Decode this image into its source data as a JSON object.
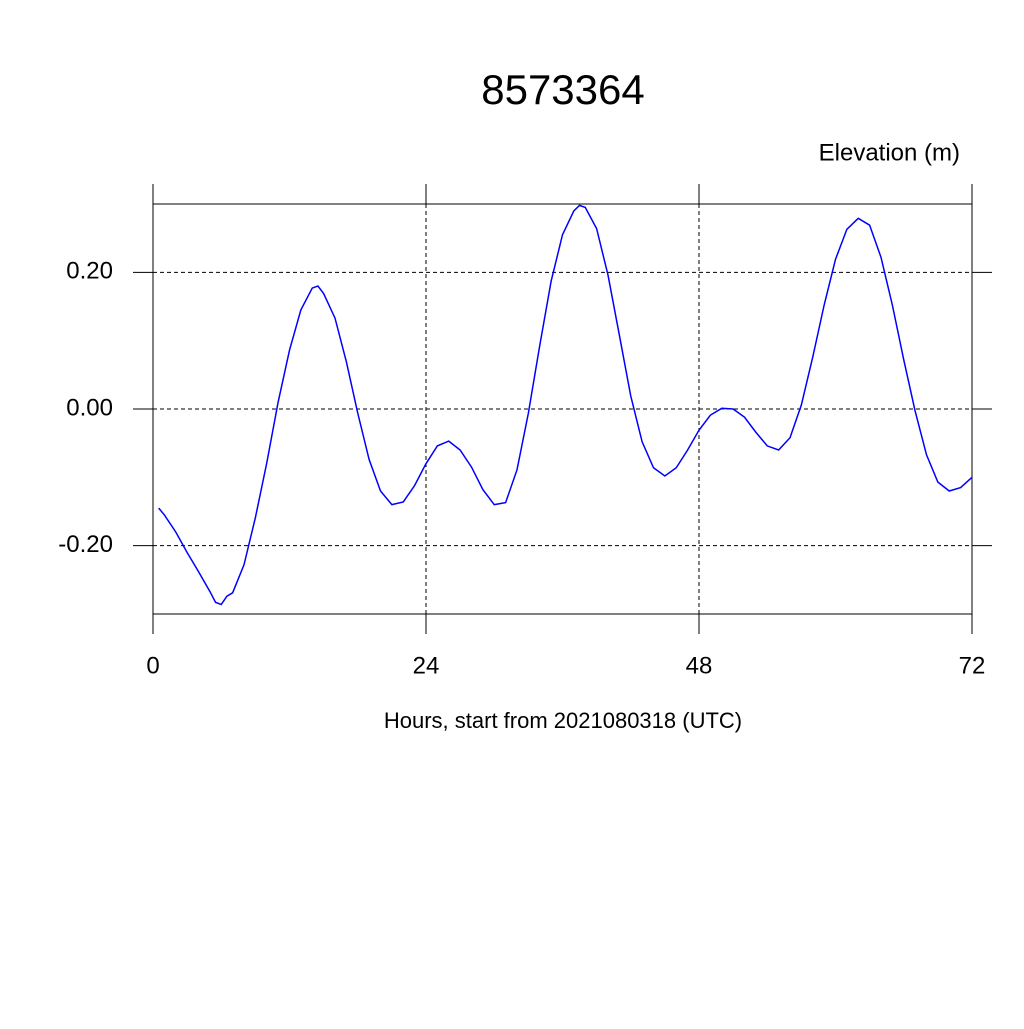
{
  "chart_data": {
    "type": "line",
    "title": "8573364",
    "ylabel": "Elevation (m)",
    "xlabel": "Hours, start from 2021080318 (UTC)",
    "x": [
      0.5,
      1,
      2,
      3,
      4,
      5,
      5.5,
      6,
      6.5,
      7,
      8,
      9,
      10,
      11,
      12,
      13,
      14,
      14.5,
      15,
      16,
      17,
      18,
      19,
      20,
      21,
      22,
      23,
      24,
      25,
      26,
      27,
      28,
      29,
      30,
      31,
      32,
      33,
      34,
      35,
      36,
      37,
      37.5,
      38,
      39,
      40,
      41,
      42,
      43,
      44,
      45,
      46,
      47,
      48,
      49,
      50,
      51,
      52,
      53,
      54,
      55,
      56,
      57,
      58,
      59,
      60,
      61,
      62,
      63,
      64,
      65,
      66,
      67,
      68,
      69,
      70,
      71,
      72
    ],
    "series": [
      {
        "name": "Elevation",
        "color": "#0000ff",
        "values": [
          -0.145,
          -0.155,
          -0.18,
          -0.21,
          -0.238,
          -0.267,
          -0.283,
          -0.286,
          -0.274,
          -0.269,
          -0.228,
          -0.159,
          -0.079,
          0.01,
          0.086,
          0.145,
          0.177,
          0.18,
          0.169,
          0.133,
          0.069,
          -0.006,
          -0.074,
          -0.12,
          -0.14,
          -0.136,
          -0.112,
          -0.08,
          -0.054,
          -0.047,
          -0.06,
          -0.085,
          -0.118,
          -0.14,
          -0.137,
          -0.089,
          -0.006,
          0.093,
          0.187,
          0.255,
          0.29,
          0.298,
          0.295,
          0.264,
          0.196,
          0.108,
          0.019,
          -0.048,
          -0.086,
          -0.098,
          -0.086,
          -0.06,
          -0.031,
          -0.009,
          0.001,
          0,
          -0.012,
          -0.034,
          -0.054,
          -0.06,
          -0.042,
          0.006,
          0.076,
          0.152,
          0.219,
          0.263,
          0.279,
          0.269,
          0.222,
          0.152,
          0.072,
          -0.003,
          -0.067,
          -0.107,
          -0.12,
          -0.115,
          -0.1
        ]
      }
    ],
    "xlim": [
      0,
      72
    ],
    "xticks": [
      0,
      24,
      48,
      72
    ],
    "ylim": [
      -0.3,
      0.3
    ],
    "yticks": [
      {
        "value": -0.2,
        "label": "-0.20"
      },
      {
        "value": 0,
        "label": "0.00"
      },
      {
        "value": 0.2,
        "label": "0.20"
      }
    ],
    "grid": true
  }
}
